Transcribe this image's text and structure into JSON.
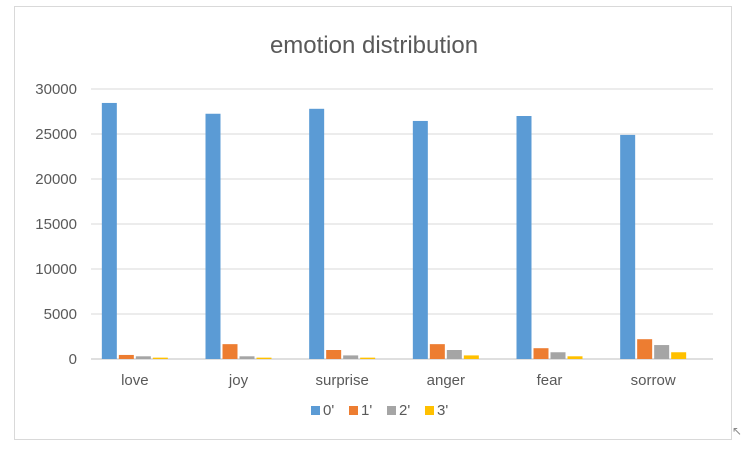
{
  "chart_data": {
    "type": "bar",
    "title": "emotion distribution",
    "xlabel": "",
    "ylabel": "",
    "categories": [
      "love",
      "joy",
      "surprise",
      "anger",
      "fear",
      "sorrow"
    ],
    "series": [
      {
        "name": "0'",
        "color": "#5b9bd5",
        "values": [
          28450,
          27250,
          27800,
          26450,
          27000,
          24900
        ]
      },
      {
        "name": "1'",
        "color": "#ed7d31",
        "values": [
          450,
          1650,
          1000,
          1650,
          1200,
          2200
        ]
      },
      {
        "name": "2'",
        "color": "#a5a5a5",
        "values": [
          300,
          300,
          400,
          1000,
          750,
          1550
        ]
      },
      {
        "name": "3'",
        "color": "#ffc000",
        "values": [
          150,
          150,
          150,
          400,
          300,
          750
        ]
      }
    ],
    "ylim": [
      0,
      30000
    ],
    "yticks": [
      0,
      5000,
      10000,
      15000,
      20000,
      25000,
      30000
    ],
    "grid": true,
    "legend": "bottom"
  }
}
